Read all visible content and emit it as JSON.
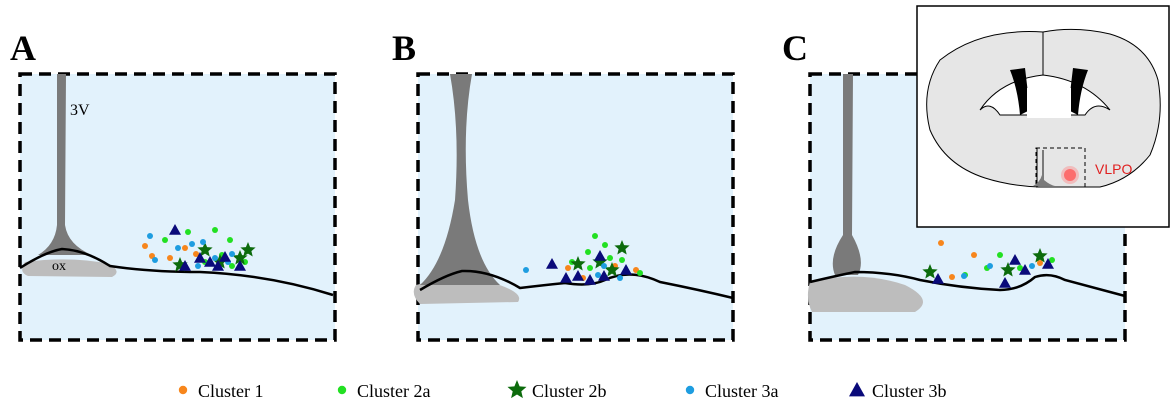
{
  "panels": [
    {
      "label": "A",
      "annotations": [
        "3V",
        "ox"
      ]
    },
    {
      "label": "B"
    },
    {
      "label": "C"
    }
  ],
  "inset": {
    "label": "VLPO"
  },
  "legend": [
    {
      "name": "Cluster 1",
      "color": "#f7861c",
      "marker": "circle"
    },
    {
      "name": "Cluster 2a",
      "color": "#22e022",
      "marker": "circle"
    },
    {
      "name": "Cluster 2b",
      "color": "#0c6b0c",
      "marker": "star"
    },
    {
      "name": "Cluster 3a",
      "color": "#1e9de0",
      "marker": "circle"
    },
    {
      "name": "Cluster 3b",
      "color": "#0a0a7a",
      "marker": "triangle"
    }
  ]
}
